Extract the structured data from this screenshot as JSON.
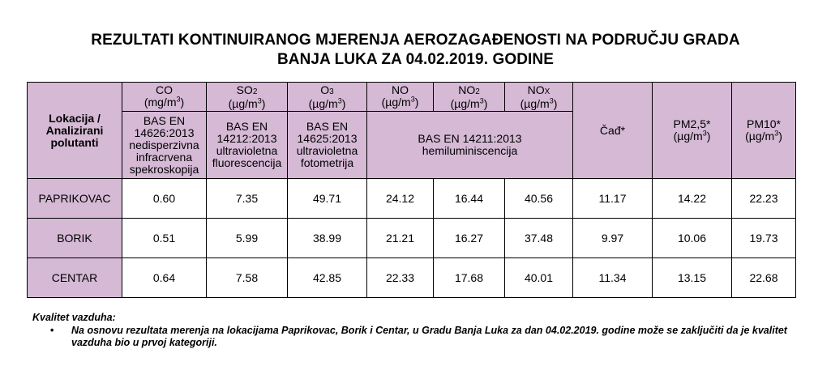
{
  "title": {
    "line1": "REZULTATI KONTINUIRANOG MJERENJA AEROZAGAĐENOSTI NA PODRUČJU GRADA",
    "line2": "BANJA LUKA ZA 04.02.2019. GODINE"
  },
  "table": {
    "corner_header": "Lokacija / Analizirani polutanti",
    "columns": [
      {
        "name": "CO",
        "name_sub": "",
        "unit_pre": "(mg/m",
        "unit_sup": "3",
        "unit_post": ")",
        "method": "BAS EN 14626:2013 nedisperzivna infracrvena spekroskopija"
      },
      {
        "name": "SO",
        "name_sub": "2",
        "unit_pre": "(µg/m",
        "unit_sup": "3",
        "unit_post": ")",
        "method": "BAS EN 14212:2013 ultravioletna fluorescencija"
      },
      {
        "name": "O",
        "name_sub": "3",
        "unit_pre": "(µg/m",
        "unit_sup": "3",
        "unit_post": ")",
        "method": "BAS EN 14625:2013 ultravioletna fotometrija"
      },
      {
        "name": "NO",
        "name_sub": "",
        "unit_pre": "(µg/m",
        "unit_sup": "3",
        "unit_post": ")"
      },
      {
        "name": "NO",
        "name_sub": "2",
        "unit_pre": "(µg/m",
        "unit_sup": "3",
        "unit_post": ")"
      },
      {
        "name": "NO",
        "name_sub": "X",
        "unit_pre": "(µg/m",
        "unit_sup": "3",
        "unit_post": ")"
      },
      {
        "name": "Čađ*",
        "unit_pre": "",
        "unit_sup": "",
        "unit_post": ""
      },
      {
        "name": "PM2,5*",
        "unit_pre": "(µg/m",
        "unit_sup": "3",
        "unit_post": ")"
      },
      {
        "name": "PM10*",
        "unit_pre": "(µg/m",
        "unit_sup": "3",
        "unit_post": ")"
      }
    ],
    "nox_method_line1": "BAS EN 14211:2013",
    "nox_method_line2": "hemiluminiscencija",
    "rows": [
      {
        "location": "PAPRIKOVAC",
        "values": [
          "0.60",
          "7.35",
          "49.71",
          "24.12",
          "16.44",
          "40.56",
          "11.17",
          "14.22",
          "22.23"
        ]
      },
      {
        "location": "BORIK",
        "values": [
          "0.51",
          "5.99",
          "38.99",
          "21.21",
          "16.27",
          "37.48",
          "9.97",
          "10.06",
          "19.73"
        ]
      },
      {
        "location": "CENTAR",
        "values": [
          "0.64",
          "7.58",
          "42.85",
          "22.33",
          "17.68",
          "40.01",
          "11.34",
          "13.15",
          "22.68"
        ]
      }
    ]
  },
  "notes": {
    "heading": "Kvalitet vazduha:",
    "bullet_symbol": "•",
    "bullet_text": "Na osnovu rezultata merenja na lokacijama Paprikovac, Borik i Centar, u Gradu Banja Luka za dan 04.02.2019. godine može se zaključiti da je kvalitet vazduha bio u prvoj kategoriji."
  },
  "colors": {
    "header_background": "#d5b9d5",
    "border": "#000000",
    "text": "#000000"
  }
}
